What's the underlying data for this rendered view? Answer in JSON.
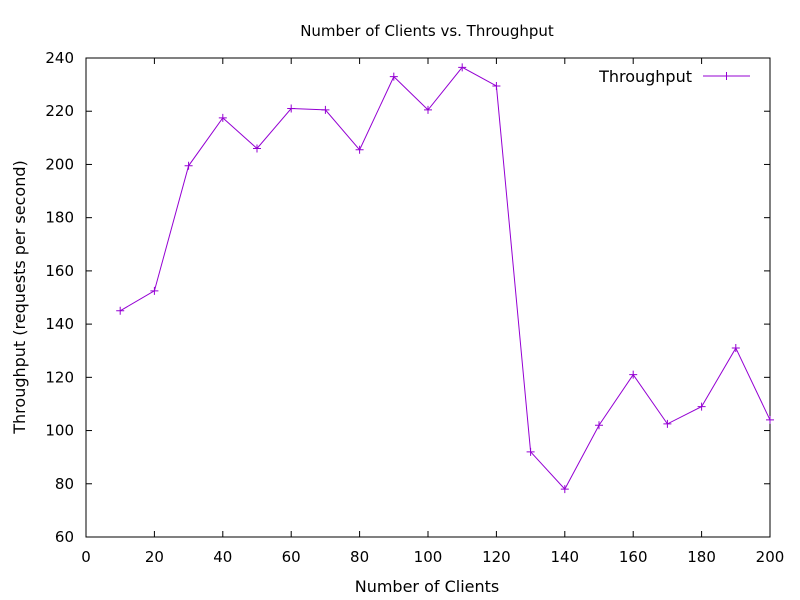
{
  "chart_data": {
    "type": "line",
    "title": "Number of Clients vs. Throughput",
    "xlabel": "Number of Clients",
    "ylabel": "Throughput (requests per second)",
    "xlim": [
      0,
      200
    ],
    "ylim": [
      60,
      240
    ],
    "xticks": [
      0,
      20,
      40,
      60,
      80,
      100,
      120,
      140,
      160,
      180,
      200
    ],
    "yticks": [
      60,
      80,
      100,
      120,
      140,
      160,
      180,
      200,
      220,
      240
    ],
    "grid": false,
    "legend_position": "top-right",
    "series": [
      {
        "name": "Throughput",
        "color": "#9400d3",
        "marker": "plus",
        "x": [
          10,
          20,
          30,
          40,
          50,
          60,
          70,
          80,
          90,
          100,
          110,
          120,
          130,
          140,
          150,
          160,
          170,
          180,
          190,
          200
        ],
        "y": [
          145,
          152.5,
          199.5,
          217.5,
          206,
          221,
          220.5,
          205.5,
          233,
          220.5,
          236.5,
          229.5,
          92,
          78,
          102,
          121,
          102.5,
          109,
          131,
          104
        ]
      }
    ]
  }
}
